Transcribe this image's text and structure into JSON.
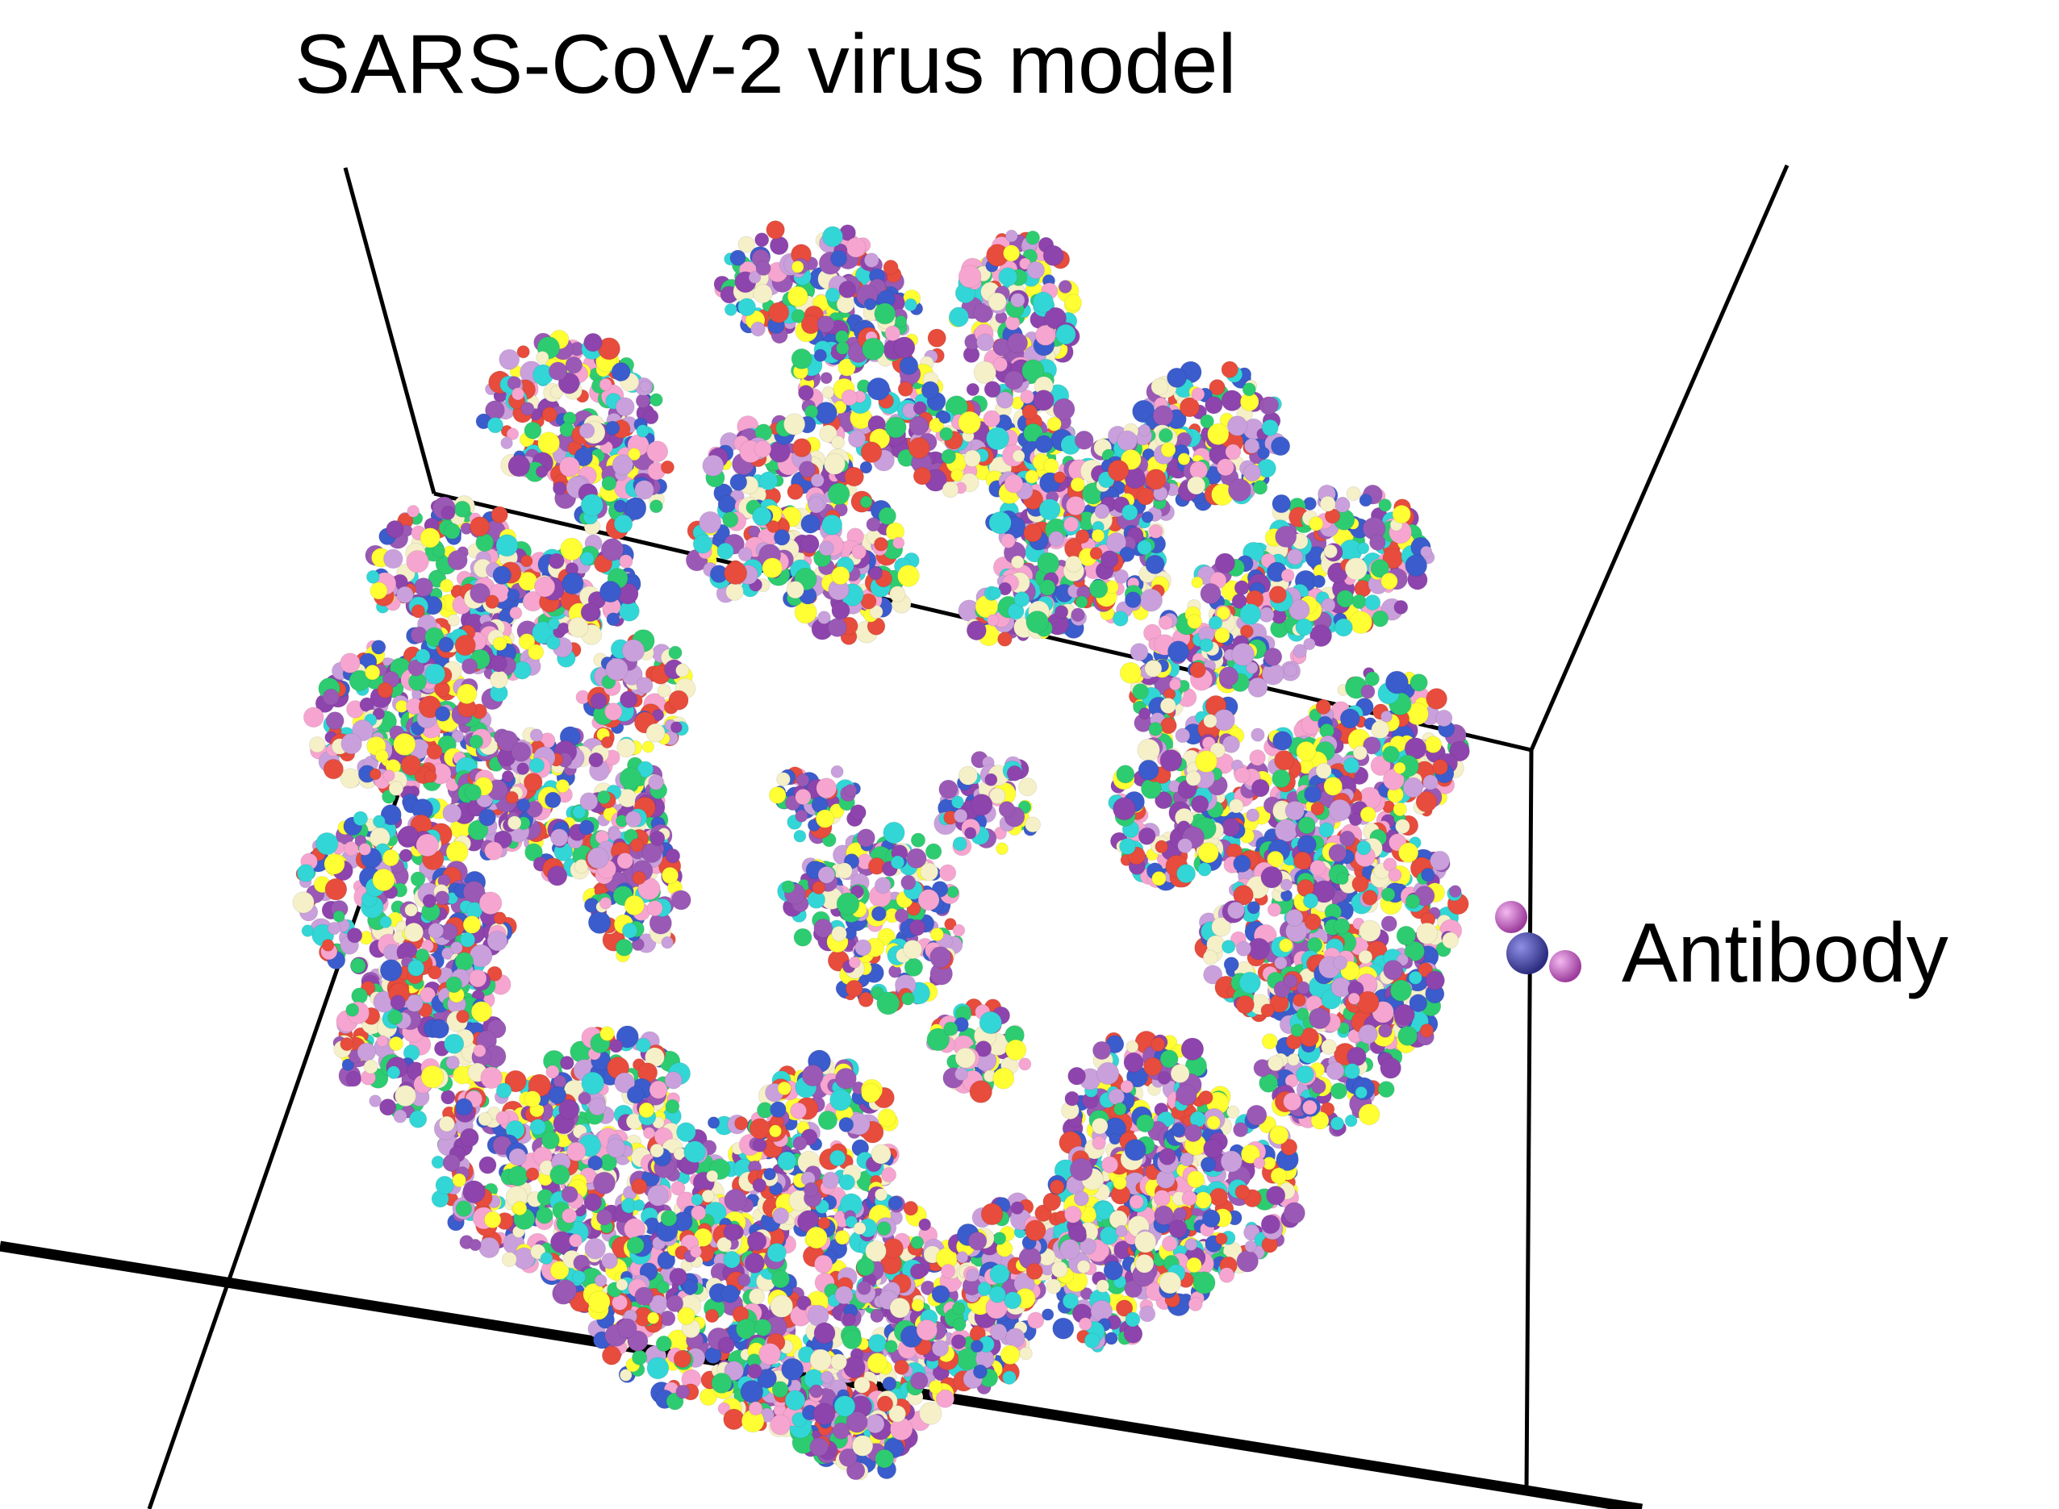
{
  "figure": {
    "title": "SARS-CoV-2 virus model",
    "antibody_label": "Antibody"
  },
  "colors": {
    "atom_palette": [
      "#ffff33",
      "#f5f0c8",
      "#8e44ad",
      "#9b59b6",
      "#33d6d6",
      "#2ecc71",
      "#e74c3c",
      "#3b5ccc",
      "#f6a5d0",
      "#c9a0dc"
    ],
    "antibody_main": "#3d3d9e",
    "antibody_side": "#c05bc0",
    "box_lines": "#000000"
  }
}
